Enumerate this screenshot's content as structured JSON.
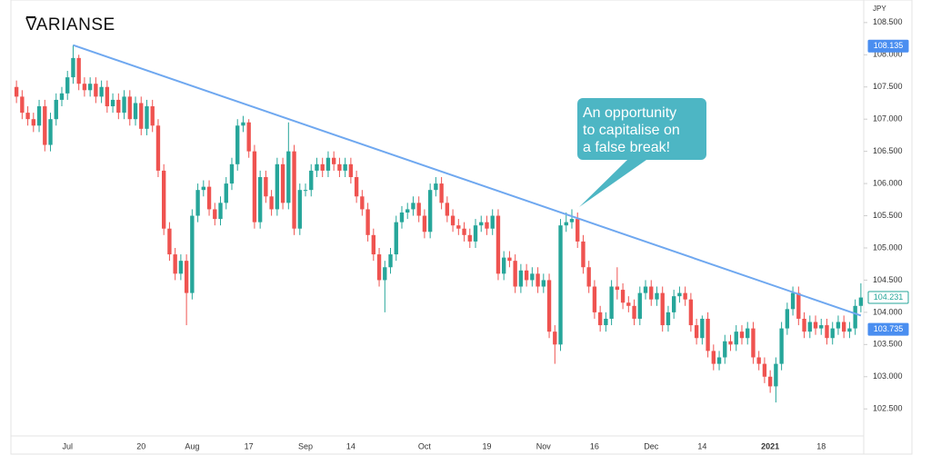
{
  "logo": "VARIANSE",
  "chart_data": {
    "type": "candlestick",
    "y_axis_label": "JPY",
    "up_color": "#26a69a",
    "down_color": "#ef5350",
    "ylim": [
      102.08,
      108.78
    ],
    "yticks": [
      {
        "value": 102.5,
        "label": "102.500"
      },
      {
        "value": 103,
        "label": "103.000"
      },
      {
        "value": 103.5,
        "label": "103.500"
      },
      {
        "value": 104,
        "label": "104.000"
      },
      {
        "value": 104.5,
        "label": "104.500"
      },
      {
        "value": 105,
        "label": "105.000"
      },
      {
        "value": 105.5,
        "label": "105.500"
      },
      {
        "value": 106,
        "label": "106.000"
      },
      {
        "value": 106.5,
        "label": "106.500"
      },
      {
        "value": 107,
        "label": "107.000"
      },
      {
        "value": 107.5,
        "label": "107.500"
      },
      {
        "value": 108,
        "label": "108.000"
      },
      {
        "value": 108.5,
        "label": "108.500"
      }
    ],
    "categories": [
      null,
      null,
      null,
      null,
      null,
      null,
      null,
      null,
      null,
      "Jul",
      null,
      null,
      null,
      null,
      null,
      null,
      null,
      null,
      null,
      null,
      null,
      null,
      "20",
      null,
      null,
      null,
      null,
      null,
      null,
      null,
      null,
      "Aug",
      null,
      null,
      null,
      null,
      null,
      null,
      null,
      null,
      null,
      "17",
      null,
      null,
      null,
      null,
      null,
      null,
      null,
      null,
      null,
      "Sep",
      null,
      null,
      null,
      null,
      null,
      null,
      null,
      "14",
      null,
      null,
      null,
      null,
      null,
      null,
      null,
      null,
      null,
      null,
      null,
      null,
      "Oct",
      null,
      null,
      null,
      null,
      null,
      null,
      null,
      null,
      null,
      null,
      "19",
      null,
      null,
      null,
      null,
      null,
      null,
      null,
      null,
      null,
      "Nov",
      null,
      null,
      null,
      null,
      null,
      null,
      null,
      null,
      "16",
      null,
      null,
      null,
      null,
      null,
      null,
      null,
      null,
      null,
      "Dec",
      null,
      null,
      null,
      null,
      null,
      null,
      null,
      null,
      "14",
      null,
      null,
      null,
      null,
      null,
      null,
      null,
      null,
      null,
      null,
      null,
      "2021",
      null,
      null,
      null,
      null,
      null,
      null,
      null,
      null,
      "18",
      null,
      null,
      null,
      null,
      null,
      null,
      null
    ],
    "open": [
      107.5,
      107.35,
      107.1,
      107.0,
      106.9,
      107.2,
      106.6,
      107.0,
      107.3,
      107.4,
      107.65,
      107.95,
      107.55,
      107.45,
      107.55,
      107.35,
      107.5,
      107.2,
      107.3,
      107.1,
      107.35,
      107.0,
      107.25,
      106.85,
      107.2,
      106.9,
      106.2,
      105.3,
      104.9,
      104.6,
      104.8,
      104.3,
      105.5,
      105.9,
      105.95,
      105.6,
      105.45,
      105.7,
      106.0,
      106.3,
      106.9,
      106.95,
      106.5,
      105.4,
      106.1,
      105.8,
      105.6,
      106.3,
      105.7,
      106.5,
      105.3,
      105.9,
      105.9,
      106.2,
      106.3,
      106.2,
      106.4,
      106.3,
      106.2,
      106.3,
      106.1,
      105.8,
      105.6,
      105.2,
      104.9,
      104.5,
      104.7,
      104.9,
      105.4,
      105.55,
      105.6,
      105.7,
      105.5,
      105.25,
      105.9,
      106.0,
      105.7,
      105.5,
      105.35,
      105.3,
      105.2,
      105.1,
      105.35,
      105.4,
      105.3,
      105.5,
      104.6,
      104.85,
      104.8,
      104.4,
      104.65,
      104.5,
      104.6,
      104.4,
      104.5,
      103.7,
      103.5,
      105.35,
      105.4,
      105.45,
      105.1,
      104.7,
      104.4,
      104.0,
      103.8,
      103.9,
      104.4,
      104.35,
      104.15,
      104.1,
      103.9,
      104.3,
      104.4,
      104.2,
      104.3,
      103.8,
      104.0,
      104.25,
      104.3,
      104.2,
      103.8,
      103.6,
      103.9,
      103.4,
      103.2,
      103.3,
      103.55,
      103.5,
      103.7,
      103.6,
      103.75,
      103.3,
      103.2,
      103.0,
      102.85,
      103.2,
      103.75,
      104.05,
      104.3,
      103.9,
      103.7,
      103.85,
      103.75,
      103.8,
      103.6,
      103.75,
      103.85,
      103.7,
      103.75,
      104.1
    ],
    "high": [
      107.6,
      107.45,
      107.2,
      107.1,
      107.3,
      107.3,
      107.1,
      107.4,
      107.5,
      107.75,
      108.15,
      108.0,
      107.65,
      107.65,
      107.65,
      107.6,
      107.6,
      107.4,
      107.4,
      107.45,
      107.45,
      107.35,
      107.35,
      107.3,
      107.3,
      107.0,
      106.3,
      105.4,
      105.0,
      104.9,
      104.9,
      105.6,
      106.0,
      106.05,
      106.05,
      105.7,
      105.8,
      106.1,
      106.4,
      107.0,
      107.05,
      107.0,
      106.6,
      106.2,
      106.2,
      105.9,
      106.4,
      106.4,
      106.95,
      106.6,
      106.0,
      106.0,
      106.3,
      106.4,
      106.4,
      106.5,
      106.5,
      106.4,
      106.4,
      106.4,
      106.2,
      105.9,
      105.7,
      105.3,
      105.0,
      104.8,
      105.0,
      105.5,
      105.65,
      105.7,
      105.8,
      105.8,
      105.6,
      106.0,
      106.1,
      106.1,
      105.8,
      105.6,
      105.45,
      105.4,
      105.3,
      105.45,
      105.5,
      105.5,
      105.6,
      105.6,
      104.95,
      104.95,
      104.9,
      104.75,
      104.75,
      104.7,
      104.7,
      104.6,
      104.6,
      103.8,
      105.45,
      105.55,
      105.6,
      105.55,
      105.2,
      104.8,
      104.5,
      104.1,
      104.0,
      104.5,
      104.7,
      104.45,
      104.25,
      104.2,
      104.4,
      104.5,
      104.5,
      104.4,
      104.4,
      104.1,
      104.35,
      104.4,
      104.4,
      104.3,
      103.9,
      103.95,
      104.0,
      103.5,
      103.4,
      103.65,
      103.65,
      103.8,
      103.8,
      103.85,
      103.85,
      103.4,
      103.3,
      103.1,
      103.3,
      103.85,
      104.15,
      104.4,
      104.4,
      104.0,
      103.95,
      103.95,
      103.9,
      103.9,
      103.85,
      103.95,
      103.95,
      103.85,
      104.2,
      104.45
    ],
    "low": [
      107.25,
      107.0,
      106.9,
      106.8,
      106.8,
      106.5,
      106.5,
      106.9,
      107.2,
      107.3,
      107.55,
      107.45,
      107.35,
      107.35,
      107.25,
      107.25,
      107.1,
      107.1,
      107.0,
      107.0,
      106.9,
      106.9,
      106.75,
      106.75,
      106.8,
      106.1,
      105.2,
      104.8,
      104.5,
      104.5,
      103.8,
      104.2,
      105.4,
      105.8,
      105.5,
      105.35,
      105.35,
      105.6,
      105.9,
      106.2,
      106.8,
      106.4,
      105.3,
      105.3,
      105.7,
      105.5,
      105.5,
      105.6,
      105.6,
      105.2,
      105.2,
      105.8,
      105.8,
      106.1,
      106.1,
      106.1,
      106.2,
      106.1,
      106.1,
      106.0,
      105.7,
      105.5,
      105.1,
      104.8,
      104.4,
      104.0,
      104.6,
      104.8,
      105.3,
      105.45,
      105.5,
      105.4,
      105.15,
      105.15,
      105.8,
      105.6,
      105.4,
      105.25,
      105.2,
      105.1,
      105.0,
      105.0,
      105.25,
      105.2,
      105.2,
      104.5,
      104.5,
      104.7,
      104.3,
      104.3,
      104.4,
      104.4,
      104.3,
      104.3,
      103.6,
      103.2,
      103.4,
      105.25,
      105.3,
      105.0,
      104.6,
      104.3,
      103.9,
      103.7,
      103.7,
      103.8,
      104.2,
      104.05,
      104.0,
      103.8,
      103.8,
      104.2,
      104.1,
      104.1,
      103.7,
      103.7,
      103.9,
      104.15,
      104.1,
      103.7,
      103.5,
      103.5,
      103.3,
      103.1,
      103.1,
      103.2,
      103.4,
      103.4,
      103.5,
      103.5,
      103.2,
      103.1,
      102.9,
      102.75,
      102.6,
      103.1,
      103.65,
      103.95,
      103.8,
      103.6,
      103.6,
      103.65,
      103.65,
      103.5,
      103.5,
      103.65,
      103.6,
      103.6,
      103.65,
      104.0
    ],
    "close": [
      107.35,
      107.1,
      107.0,
      106.9,
      107.2,
      106.6,
      107.0,
      107.3,
      107.4,
      107.65,
      107.95,
      107.55,
      107.45,
      107.55,
      107.35,
      107.5,
      107.2,
      107.3,
      107.1,
      107.35,
      107.0,
      107.25,
      106.85,
      107.2,
      106.9,
      106.2,
      105.3,
      104.9,
      104.6,
      104.8,
      104.3,
      105.5,
      105.9,
      105.95,
      105.6,
      105.45,
      105.7,
      106.0,
      106.3,
      106.9,
      106.95,
      106.5,
      105.4,
      106.1,
      105.8,
      105.6,
      106.3,
      105.7,
      106.5,
      105.3,
      105.9,
      105.9,
      106.2,
      106.3,
      106.2,
      106.4,
      106.3,
      106.2,
      106.3,
      106.1,
      105.8,
      105.6,
      105.2,
      104.9,
      104.5,
      104.7,
      104.9,
      105.4,
      105.55,
      105.6,
      105.7,
      105.5,
      105.25,
      105.9,
      106.0,
      105.7,
      105.5,
      105.35,
      105.3,
      105.2,
      105.1,
      105.35,
      105.4,
      105.3,
      105.5,
      104.6,
      104.85,
      104.8,
      104.4,
      104.65,
      104.5,
      104.6,
      104.4,
      104.5,
      103.7,
      103.5,
      105.35,
      105.4,
      105.45,
      105.1,
      104.7,
      104.4,
      104.0,
      103.8,
      103.9,
      104.4,
      104.35,
      104.15,
      104.1,
      103.9,
      104.3,
      104.4,
      104.2,
      104.3,
      103.8,
      104.0,
      104.25,
      104.3,
      104.2,
      103.8,
      103.6,
      103.9,
      103.4,
      103.2,
      103.3,
      103.55,
      103.5,
      103.7,
      103.6,
      103.75,
      103.3,
      103.2,
      103.0,
      102.85,
      103.2,
      103.75,
      104.05,
      104.3,
      103.9,
      103.7,
      103.85,
      103.75,
      103.8,
      103.6,
      103.75,
      103.85,
      103.7,
      103.75,
      104.1,
      104.23
    ],
    "trend_line": {
      "color": "#6fa8f0",
      "start": [
        10,
        108.15
      ],
      "end": [
        149,
        103.95
      ]
    },
    "price_labels": [
      {
        "value": 108.135,
        "color": "#4a8ef0",
        "filled": true
      },
      {
        "value": 104.231,
        "color": "#26a69a",
        "filled": false
      },
      {
        "value": 103.735,
        "color": "#4a8ef0",
        "filled": true
      }
    ],
    "callout": {
      "lines": [
        "An opportunity",
        "to capitalise on",
        "a false break!"
      ],
      "color": "#4db6c4"
    }
  }
}
